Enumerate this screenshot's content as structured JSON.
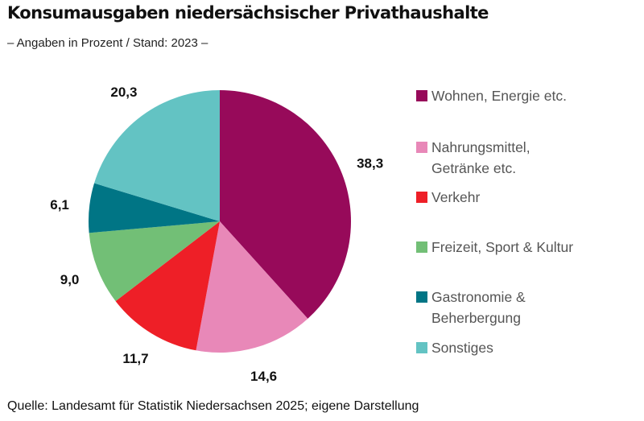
{
  "header": {
    "title": "Konsumausgaben niedersächsischer Privathaushalte",
    "subtitle": "– Angaben in Prozent / Stand: 2023  –"
  },
  "footer": {
    "source": "Quelle: Landesamt für Statistik Niedersachsen 2025; eigene Darstellung"
  },
  "chart_data": {
    "type": "pie",
    "title": "Konsumausgaben niedersächsischer Privathaushalte",
    "subtitle": "– Angaben in Prozent / Stand: 2023  –",
    "unit": "Prozent",
    "legend_position": "right",
    "categories": [
      "Wohnen, Energie etc.",
      "Nahrungsmittel,\nGetränke etc.",
      "Verkehr",
      "Freizeit, Sport & Kultur",
      "Gastronomie &\nBeherbergung",
      "Sonstiges"
    ],
    "values": [
      38.3,
      14.6,
      11.7,
      9.0,
      6.1,
      20.3
    ],
    "value_labels": [
      "38,3",
      "14,6",
      "11,7",
      "9,0",
      "6,1",
      "20,3"
    ],
    "colors": [
      "#970a5a",
      "#e888b8",
      "#ee1f27",
      "#72bf76",
      "#007585",
      "#63c3c3"
    ]
  }
}
